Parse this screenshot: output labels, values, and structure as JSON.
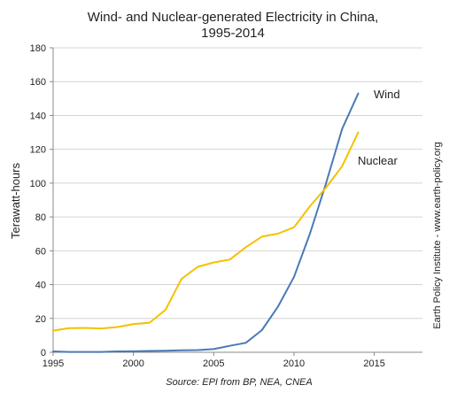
{
  "chart_data": {
    "type": "line",
    "title": [
      "Wind- and Nuclear-generated Electricity in China,",
      "1995-2014"
    ],
    "ylabel": "Terawatt-hours",
    "xlabel": "",
    "xlim": [
      1995,
      2018
    ],
    "ylim": [
      0,
      180
    ],
    "x_ticks": [
      1995,
      2000,
      2005,
      2010,
      2015
    ],
    "y_ticks": [
      0,
      20,
      40,
      60,
      80,
      100,
      120,
      140,
      160,
      180
    ],
    "grid": "horizontal",
    "legend": "inline labels",
    "series": [
      {
        "name": "Wind",
        "color": "#4a7ab5",
        "x": [
          1995,
          1996,
          1997,
          1998,
          1999,
          2000,
          2001,
          2002,
          2003,
          2004,
          2005,
          2006,
          2007,
          2008,
          2009,
          2010,
          2011,
          2012,
          2013,
          2014
        ],
        "values": [
          0.5,
          0.2,
          0.2,
          0.2,
          0.5,
          0.6,
          0.8,
          0.9,
          1.2,
          1.3,
          1.9,
          3.8,
          5.6,
          13.1,
          26.9,
          44.6,
          70.3,
          100,
          132,
          153
        ]
      },
      {
        "name": "Nuclear",
        "color": "#f5c000",
        "x": [
          1995,
          1996,
          1997,
          1998,
          1999,
          2000,
          2001,
          2002,
          2003,
          2004,
          2005,
          2006,
          2007,
          2008,
          2009,
          2010,
          2011,
          2012,
          2013,
          2014
        ],
        "values": [
          12.8,
          14.3,
          14.4,
          14.1,
          14.9,
          16.7,
          17.5,
          25.1,
          43.4,
          50.5,
          53.1,
          54.8,
          62.1,
          68.4,
          70.1,
          73.9,
          86.4,
          97.4,
          110,
          130
        ]
      }
    ],
    "source": "Source: EPI from BP, NEA, CNEA",
    "credit": "Earth Policy Institute - www.earth-policy.org"
  }
}
